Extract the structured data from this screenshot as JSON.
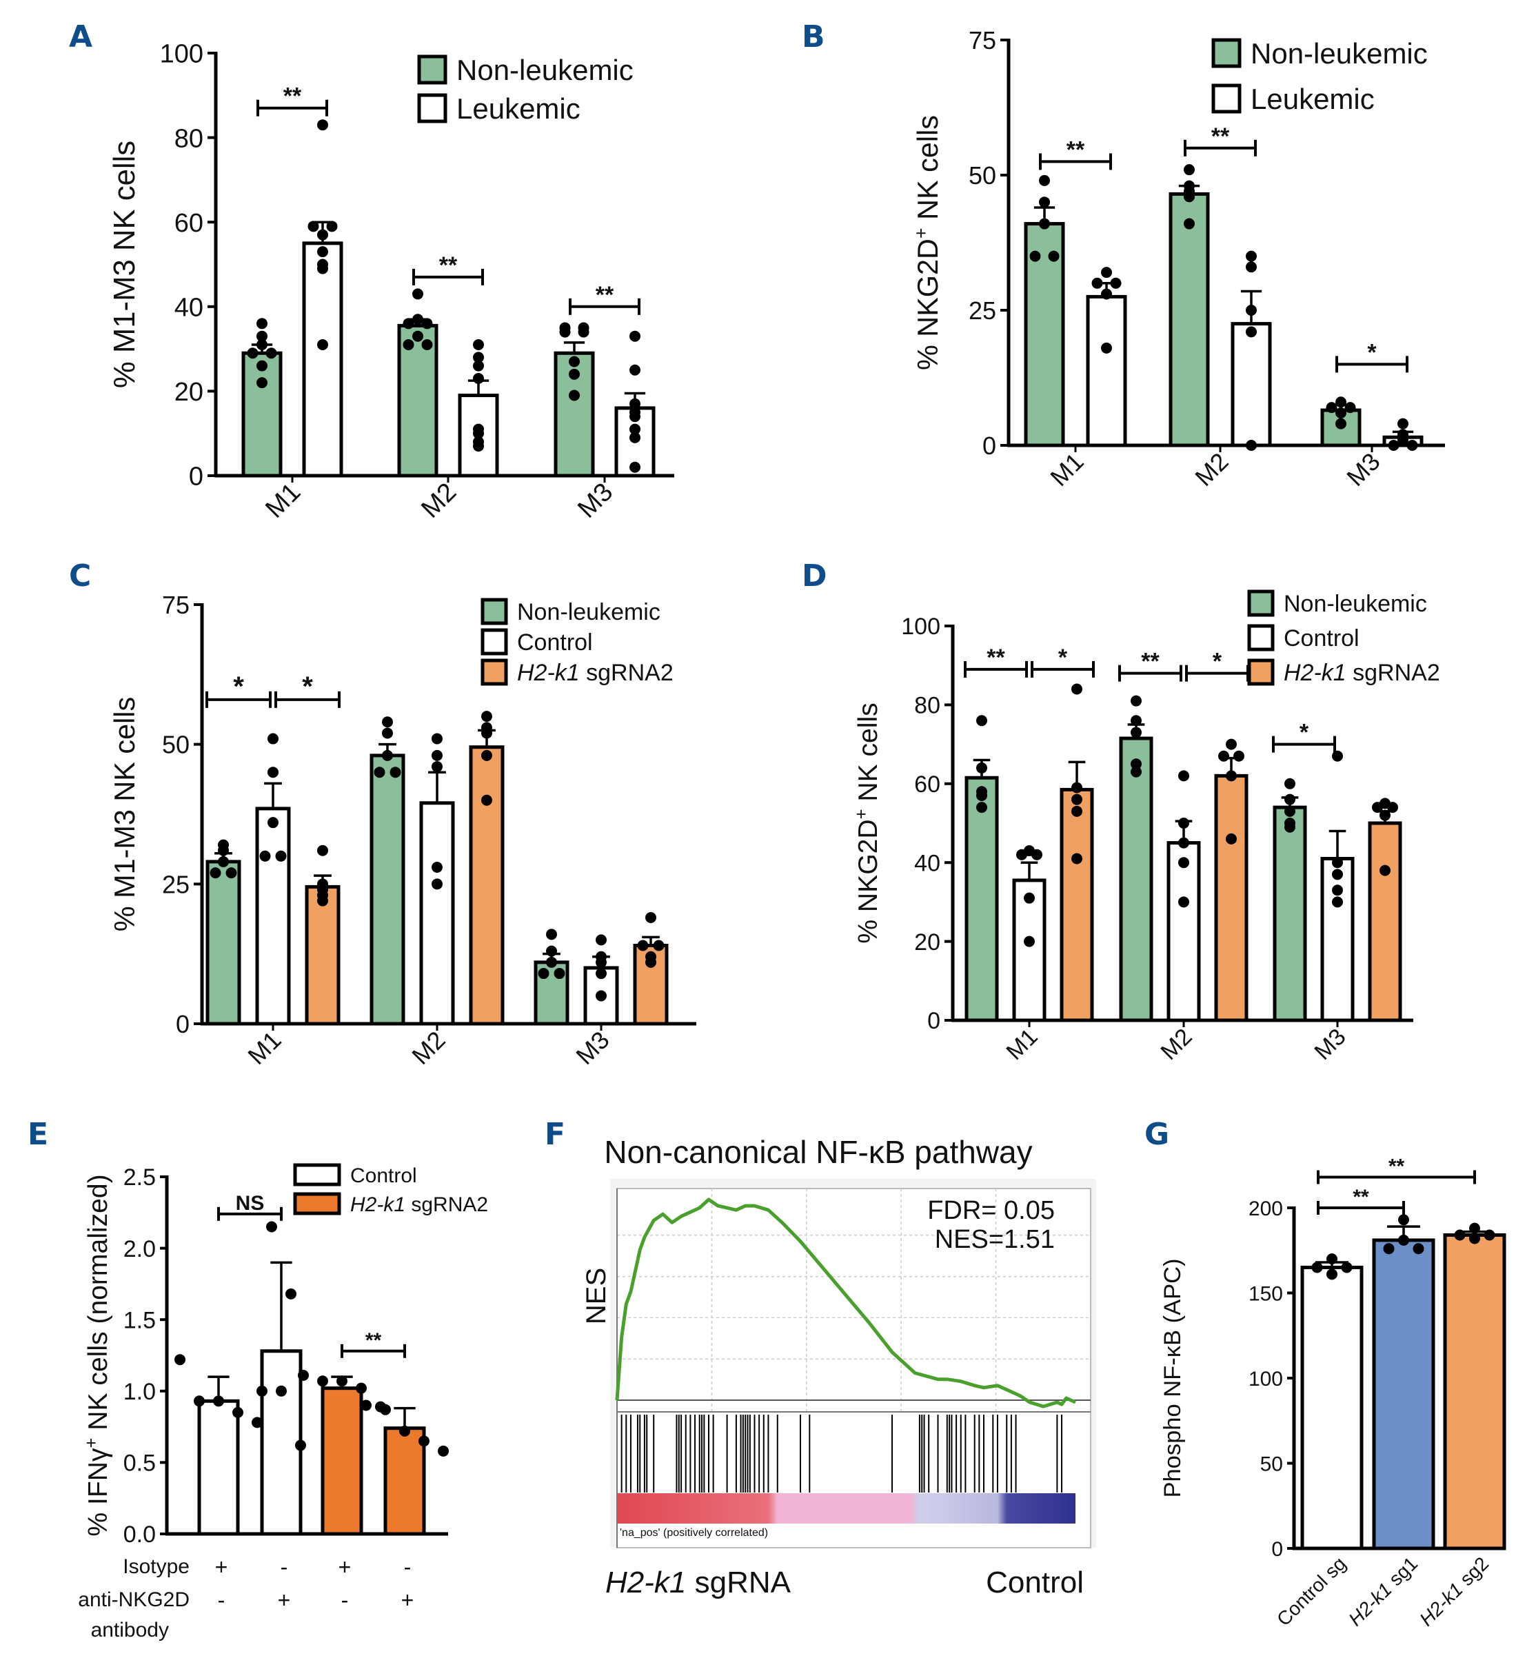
{
  "figure": {
    "label_color": "#0f4c8a",
    "colors": {
      "non_leukemic": "#8bbf9b",
      "control": "#ffffff",
      "sgrna2_light": "#f0a060",
      "sgrna2_bold": "#ec7a2c",
      "sg1_blue": "#6b8fc7",
      "gsea_curve": "#4aa02c"
    }
  },
  "chart_data": [
    {
      "panel": "A",
      "type": "bar",
      "ylabel": "% M1-M3 NK cells",
      "ylim": [
        0,
        100
      ],
      "yticks": [
        0,
        20,
        40,
        60,
        80,
        100
      ],
      "categories": [
        "M1",
        "M2",
        "M3"
      ],
      "legend": {
        "placement": "top-right",
        "entries": [
          {
            "label": "Non-leukemic",
            "italic_part": "",
            "rest": "Non-leukemic",
            "color": "#8bbf9b"
          },
          {
            "label": "Leukemic",
            "italic_part": "",
            "rest": "Leukemic",
            "color": "#ffffff"
          }
        ]
      },
      "series": [
        {
          "name": "Non-leukemic",
          "color": "#8bbf9b",
          "values": [
            29,
            35.5,
            29
          ],
          "errors": [
            2,
            1.5,
            2.5
          ],
          "points": [
            [
              36,
              33,
              31,
              29,
              29,
              26,
              22
            ],
            [
              43,
              37,
              36,
              36,
              33,
              31,
              31
            ],
            [
              35,
              35,
              34,
              34,
              27,
              24,
              19
            ]
          ]
        },
        {
          "name": "Leukemic",
          "color": "#ffffff",
          "values": [
            55,
            19,
            16
          ],
          "errors": [
            5,
            3.5,
            3.5
          ],
          "points": [
            [
              83,
              59,
              59,
              57,
              53,
              50,
              49,
              31
            ],
            [
              31,
              28,
              26,
              23,
              11,
              10,
              7,
              8
            ],
            [
              33,
              25,
              17,
              15,
              14,
              11,
              9,
              2
            ]
          ]
        }
      ],
      "significance": [
        {
          "category": "M1",
          "label": "**",
          "y": 87
        },
        {
          "category": "M2",
          "label": "**",
          "y": 47
        },
        {
          "category": "M3",
          "label": "**",
          "y": 40
        }
      ]
    },
    {
      "panel": "B",
      "type": "bar",
      "ylabel": "% NKG2D+ NK cells",
      "ylabel_main": "% NKG2D",
      "ylabel_sup": "+",
      "ylabel_tail": " NK cells",
      "ylim": [
        0,
        75
      ],
      "yticks": [
        0,
        25,
        50,
        75
      ],
      "categories": [
        "M1",
        "M2",
        "M3"
      ],
      "legend": {
        "placement": "top-right",
        "entries": [
          {
            "label": "Non-leukemic",
            "rest": "Non-leukemic",
            "italic_part": "",
            "color": "#8bbf9b"
          },
          {
            "label": "Leukemic",
            "rest": "Leukemic",
            "italic_part": "",
            "color": "#ffffff"
          }
        ]
      },
      "series": [
        {
          "name": "Non-leukemic",
          "color": "#8bbf9b",
          "values": [
            41,
            46.5,
            6.5
          ],
          "errors": [
            3,
            1.5,
            1
          ],
          "points": [
            [
              49,
              45,
              41,
              35,
              35
            ],
            [
              51,
              48,
              47,
              46,
              41
            ],
            [
              8,
              7,
              7,
              6,
              4
            ]
          ]
        },
        {
          "name": "Leukemic",
          "color": "#ffffff",
          "values": [
            27.5,
            22.5,
            1.5
          ],
          "errors": [
            2.5,
            6,
            1
          ],
          "points": [
            [
              32,
              30,
              30,
              28,
              18
            ],
            [
              35,
              33,
              25,
              21,
              0
            ],
            [
              4,
              2,
              1,
              0,
              0
            ]
          ]
        }
      ],
      "significance": [
        {
          "category": "M1",
          "label": "**",
          "y": 52.5
        },
        {
          "category": "M2",
          "label": "**",
          "y": 55
        },
        {
          "category": "M3",
          "label": "*",
          "y": 15
        }
      ]
    },
    {
      "panel": "C",
      "type": "bar",
      "ylabel": "% M1-M3 NK cells",
      "ylim": [
        0,
        75
      ],
      "yticks": [
        0,
        25,
        50,
        75
      ],
      "categories": [
        "M1",
        "M2",
        "M3"
      ],
      "legend": {
        "placement": "top-right",
        "entries": [
          {
            "label": "Non-leukemic",
            "italic_part": "",
            "rest": "Non-leukemic",
            "color": "#8bbf9b"
          },
          {
            "label": "Control",
            "italic_part": "",
            "rest": "Control",
            "color": "#ffffff"
          },
          {
            "label": "H2-k1 sgRNA2",
            "italic_part": "H2-k1",
            "rest": " sgRNA2",
            "color": "#f0a060"
          }
        ]
      },
      "series": [
        {
          "name": "Non-leukemic",
          "color": "#8bbf9b",
          "values": [
            29,
            48,
            11
          ],
          "errors": [
            1.5,
            2,
            1.5
          ],
          "points": [
            [
              32,
              31,
              29,
              27,
              27
            ],
            [
              54,
              52,
              48,
              45,
              45
            ],
            [
              16,
              13,
              11,
              9,
              9
            ]
          ]
        },
        {
          "name": "Control",
          "color": "#ffffff",
          "values": [
            38.5,
            39.5,
            10
          ],
          "errors": [
            4.5,
            5.5,
            2
          ],
          "points": [
            [
              51,
              45,
              36,
              30,
              30
            ],
            [
              51,
              48,
              46,
              28,
              25
            ],
            [
              15,
              12,
              11,
              9,
              5
            ]
          ]
        },
        {
          "name": "H2-k1 sgRNA2",
          "color": "#f0a060",
          "values": [
            24.5,
            49.5,
            14
          ],
          "errors": [
            2,
            3,
            1.5
          ],
          "points": [
            [
              31,
              25,
              24,
              23,
              22
            ],
            [
              55,
              53,
              52,
              48,
              40
            ],
            [
              19,
              14,
              14,
              12,
              11
            ]
          ]
        }
      ],
      "significance": [
        {
          "from": [
            0,
            0
          ],
          "to": [
            0,
            1
          ],
          "label": "*",
          "y": 58
        },
        {
          "from": [
            0,
            1
          ],
          "to": [
            0,
            2
          ],
          "label": "*",
          "y": 58
        }
      ]
    },
    {
      "panel": "D",
      "type": "bar",
      "ylabel": "% NKG2D+ NK cells",
      "ylabel_main": "% NKG2D",
      "ylabel_sup": "+",
      "ylabel_tail": " NK cells",
      "ylim": [
        0,
        100
      ],
      "yticks": [
        0,
        20,
        40,
        60,
        80,
        100
      ],
      "categories": [
        "M1",
        "M2",
        "M3"
      ],
      "legend": {
        "placement": "top-right",
        "entries": [
          {
            "label": "Non-leukemic",
            "italic_part": "",
            "rest": "Non-leukemic",
            "color": "#8bbf9b"
          },
          {
            "label": "Control",
            "italic_part": "",
            "rest": "Control",
            "color": "#ffffff"
          },
          {
            "label": "H2-k1 sgRNA2",
            "italic_part": "H2-k1",
            "rest": " sgRNA2",
            "color": "#f0a060"
          }
        ]
      },
      "series": [
        {
          "name": "Non-leukemic",
          "color": "#8bbf9b",
          "values": [
            61.5,
            71.5,
            54
          ],
          "errors": [
            4.5,
            3.5,
            2.5
          ],
          "points": [
            [
              76,
              64,
              58,
              57,
              54
            ],
            [
              81,
              76,
              73,
              65,
              63
            ],
            [
              60,
              56,
              53,
              50,
              49
            ]
          ]
        },
        {
          "name": "Control",
          "color": "#ffffff",
          "values": [
            35.5,
            45,
            41
          ],
          "errors": [
            4.5,
            5.5,
            7
          ],
          "points": [
            [
              43,
              42,
              42,
              31,
              20
            ],
            [
              62,
              50,
              45,
              40,
              30
            ],
            [
              67,
              40,
              37,
              33,
              30
            ]
          ]
        },
        {
          "name": "H2-k1 sgRNA2",
          "color": "#f0a060",
          "values": [
            58.5,
            62,
            50
          ],
          "errors": [
            7,
            4.5,
            3
          ],
          "points": [
            [
              84,
              59,
              56,
              53,
              41
            ],
            [
              70,
              67,
              67,
              62,
              46
            ],
            [
              55,
              54,
              54,
              52,
              38
            ]
          ]
        }
      ],
      "significance": [
        {
          "from": [
            0,
            0
          ],
          "to": [
            0,
            1
          ],
          "label": "**",
          "y": 89
        },
        {
          "from": [
            0,
            1
          ],
          "to": [
            0,
            2
          ],
          "label": "*",
          "y": 89
        },
        {
          "from": [
            1,
            0
          ],
          "to": [
            1,
            1
          ],
          "label": "**",
          "y": 88
        },
        {
          "from": [
            1,
            1
          ],
          "to": [
            1,
            2
          ],
          "label": "*",
          "y": 88
        },
        {
          "from": [
            2,
            0
          ],
          "to": [
            2,
            1
          ],
          "label": "*",
          "y": 70
        }
      ]
    },
    {
      "panel": "E",
      "type": "bar",
      "ylabel": "% IFNγ+ NK cells (normalized)",
      "ylabel_main": "% IFNγ",
      "ylabel_sup": "+",
      "ylabel_tail": " NK cells (normalized)",
      "ylim": [
        0,
        2.5
      ],
      "yticks": [
        0.0,
        0.5,
        1.0,
        1.5,
        2.0,
        2.5
      ],
      "ytick_labels": [
        "0.0",
        "0.5",
        "1.0",
        "1.5",
        "2.0",
        "2.5"
      ],
      "legend": {
        "placement": "top-right",
        "entries": [
          {
            "label": "Control",
            "italic_part": "",
            "rest": "Control",
            "color": "#ffffff"
          },
          {
            "label": "H2-k1 sgRNA2",
            "italic_part": "H2-k1",
            "rest": " sgRNA2",
            "color": "#ec7a2c"
          }
        ]
      },
      "bars": [
        {
          "group": "Control",
          "isotype": "+",
          "anti_nkg2d": "-",
          "value": 0.93,
          "error": 0.17,
          "color": "#ffffff",
          "points": [
            1.22,
            0.93,
            0.93,
            0.85,
            0.78
          ]
        },
        {
          "group": "Control",
          "isotype": "-",
          "anti_nkg2d": "+",
          "value": 1.28,
          "error": 0.62,
          "color": "#ffffff",
          "points": [
            2.15,
            1.68,
            1.0,
            1.0,
            0.62
          ]
        },
        {
          "group": "H2-k1 sgRNA2",
          "isotype": "+",
          "anti_nkg2d": "-",
          "value": 1.02,
          "error": 0.08,
          "color": "#ec7a2c",
          "points": [
            1.11,
            1.07,
            1.07,
            1.02,
            0.89
          ]
        },
        {
          "group": "H2-k1 sgRNA2",
          "isotype": "-",
          "anti_nkg2d": "+",
          "value": 0.74,
          "error": 0.14,
          "color": "#ec7a2c",
          "points": [
            0.9,
            0.87,
            0.72,
            0.65,
            0.58
          ]
        }
      ],
      "row_labels": {
        "isotype": "Isotype",
        "anti_nkg2d_line1": "anti-NKG2D",
        "anti_nkg2d_line2": "antibody"
      },
      "significance": [
        {
          "from": 0,
          "to": 1,
          "label": "NS",
          "y": 2.24
        },
        {
          "from": 2,
          "to": 3,
          "label": "**",
          "y": 1.28
        }
      ]
    },
    {
      "panel": "F",
      "type": "line",
      "title": "Non-canonical NF-κB pathway",
      "ylabel": "NES",
      "annotations": [
        "FDR= 0.05",
        "NES=1.51"
      ],
      "x_left_label_italic": "H2-k1",
      "x_left_label_rest": " sgRNA",
      "x_right_label": "Control",
      "ranked_list_label": "'na_pos' (positively correlated)",
      "curve": {
        "x": [
          0,
          0.01,
          0.02,
          0.03,
          0.05,
          0.06,
          0.08,
          0.1,
          0.12,
          0.14,
          0.16,
          0.18,
          0.2,
          0.22,
          0.24,
          0.26,
          0.28,
          0.3,
          0.33,
          0.36,
          0.4,
          0.45,
          0.5,
          0.55,
          0.6,
          0.65,
          0.7,
          0.72,
          0.75,
          0.78,
          0.8,
          0.83,
          0.85,
          0.88,
          0.9,
          0.93,
          0.96,
          0.97,
          0.98,
          0.99,
          1.0
        ],
        "y": [
          0.0,
          0.3,
          0.46,
          0.52,
          0.72,
          0.78,
          0.86,
          0.89,
          0.85,
          0.88,
          0.9,
          0.92,
          0.96,
          0.93,
          0.92,
          0.91,
          0.93,
          0.93,
          0.91,
          0.85,
          0.76,
          0.63,
          0.5,
          0.37,
          0.23,
          0.13,
          0.1,
          0.1,
          0.09,
          0.07,
          0.06,
          0.07,
          0.05,
          0.02,
          -0.01,
          -0.03,
          -0.01,
          -0.02,
          0.01,
          0.0,
          -0.01
        ]
      },
      "hits": [
        0.01,
        0.02,
        0.03,
        0.045,
        0.05,
        0.06,
        0.065,
        0.08,
        0.13,
        0.135,
        0.14,
        0.15,
        0.16,
        0.17,
        0.18,
        0.185,
        0.19,
        0.2,
        0.21,
        0.24,
        0.26,
        0.27,
        0.275,
        0.28,
        0.285,
        0.29,
        0.3,
        0.31,
        0.32,
        0.33,
        0.35,
        0.4,
        0.42,
        0.6,
        0.66,
        0.665,
        0.67,
        0.68,
        0.7,
        0.72,
        0.725,
        0.73,
        0.74,
        0.75,
        0.76,
        0.78,
        0.79,
        0.8,
        0.82,
        0.83,
        0.85,
        0.86,
        0.87,
        0.96,
        0.97
      ]
    },
    {
      "panel": "G",
      "type": "bar",
      "ylabel": "Phospho NF-κB (APC)",
      "ylim": [
        0,
        200
      ],
      "yticks": [
        0,
        50,
        100,
        150,
        200
      ],
      "categories": [
        "Control sg",
        "H2-k1 sg1",
        "H2-k1 sg2"
      ],
      "bars": [
        {
          "label": "Control sg",
          "value": 165,
          "error": 3,
          "color": "#ffffff",
          "points": [
            170,
            165,
            165,
            161
          ]
        },
        {
          "label": "H2-k1 sg1",
          "value": 181,
          "error": 8,
          "color": "#6b8fc7",
          "points": [
            193,
            181,
            176,
            176
          ]
        },
        {
          "label": "H2-k1 sg2",
          "value": 184,
          "error": 2,
          "color": "#f0a060",
          "points": [
            188,
            184,
            184,
            182
          ]
        }
      ],
      "significance": [
        {
          "from": 0,
          "to": 1,
          "label": "**",
          "y": 200
        },
        {
          "from": 0,
          "to": 2,
          "label": "**",
          "y": 218
        }
      ]
    }
  ],
  "panel_labels": [
    "A",
    "B",
    "C",
    "D",
    "E",
    "F",
    "G"
  ]
}
